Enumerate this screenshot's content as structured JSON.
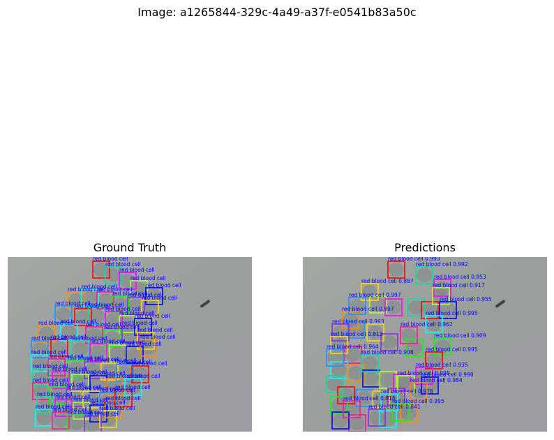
{
  "figure": {
    "title": "Image: a1265844-329c-4a49-a37f-e0541b83a50c"
  },
  "panels": {
    "left": {
      "title": "Ground Truth"
    },
    "right": {
      "title": "Predictions"
    }
  },
  "box_label": "red blood cell",
  "colors": {
    "background": "#9aa09e",
    "cell_fill": "#7f8785",
    "label_text": "#0000ff",
    "box_palette": [
      "#ff0000",
      "#ff8c00",
      "#ffd700",
      "#adff2f",
      "#00ff00",
      "#00e0a0",
      "#00ffff",
      "#1e90ff",
      "#0000ff",
      "#8a2be2",
      "#ff00ff",
      "#ff1493"
    ]
  },
  "predictions": [
    "red blood cell 0.993",
    "red blood cell 0.992",
    "red blood cell 0.953",
    "red blood cell 0.917",
    "red blood cell 0.955",
    "red blood cell 0.997",
    "red blood cell 0.995",
    "red blood cell 0.962",
    "red blood cell 0.909",
    "red blood cell 0.993",
    "red blood cell 0.813",
    "red blood cell 0.964",
    "red blood cell 0.995",
    "red blood cell 0.908",
    "red blood cell 0.935",
    "red blood cell 0.998",
    "red blood cell 0.998",
    "red blood cell 0.984",
    "red blood cell 0.978",
    "red blood cell 0.818",
    "red blood cell 0.995",
    "red blood cell 0.841",
    "red blood cell 0.887",
    "red blood cell 0.997"
  ]
}
